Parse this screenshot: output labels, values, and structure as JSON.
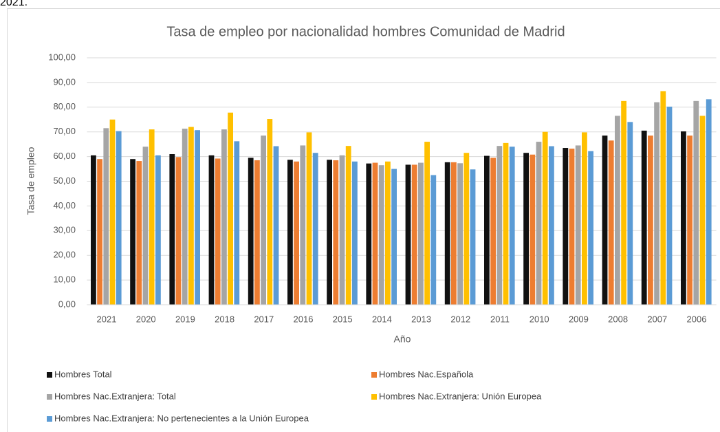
{
  "page_text": "2021.",
  "chart_data": {
    "type": "bar",
    "title": "Tasa de empleo por nacionalidad hombres Comunidad de Madrid",
    "x_label": "Año",
    "y_label": "Tasa de empleo",
    "categories": [
      "2021",
      "2020",
      "2019",
      "2018",
      "2017",
      "2016",
      "2015",
      "2014",
      "2013",
      "2012",
      "2011",
      "2010",
      "2009",
      "2008",
      "2007",
      "2006"
    ],
    "series": [
      {
        "name": "Hombres Total",
        "color": "#111111",
        "values": [
          60.5,
          59,
          61,
          60.5,
          59.5,
          58.7,
          58.7,
          57.2,
          56.7,
          57.7,
          60.3,
          61.5,
          63.5,
          68.5,
          70.5,
          70.2
        ]
      },
      {
        "name": "Hombres Nac.Española",
        "color": "#ed7d31",
        "values": [
          59,
          58.2,
          59.8,
          59.2,
          58.5,
          58,
          58.5,
          57.5,
          56.7,
          57.7,
          59.5,
          60.8,
          63.2,
          66.5,
          68.5,
          68.5
        ]
      },
      {
        "name": "Hombres Nac.Extranjera: Total",
        "color": "#a5a5a5",
        "values": [
          71.5,
          64,
          71.3,
          71,
          68.5,
          64.5,
          60.5,
          56.5,
          57.5,
          57.3,
          64.3,
          66,
          64.5,
          76.5,
          82,
          82.5
        ]
      },
      {
        "name": "Hombres Nac.Extranjera: Unión Europea",
        "color": "#ffc000",
        "values": [
          75,
          71,
          72,
          77.8,
          75.2,
          69.8,
          64.3,
          58,
          66,
          61.5,
          65.5,
          70,
          69.8,
          82.5,
          86.5,
          76.5
        ]
      },
      {
        "name": "Hombres Nac.Extranjera: No pertenecientes a la Unión Europea",
        "color": "#5b9bd5",
        "values": [
          70.3,
          60.5,
          70.7,
          66.2,
          64.2,
          61.5,
          58,
          55,
          52.5,
          54.8,
          64,
          64.2,
          62.2,
          74,
          80.2,
          83.2
        ]
      }
    ],
    "ylim": [
      0,
      100
    ],
    "yticks": [
      {
        "value": 0,
        "label": "0,00"
      },
      {
        "value": 10,
        "label": "10,00"
      },
      {
        "value": 20,
        "label": "20,00"
      },
      {
        "value": 30,
        "label": "30,00"
      },
      {
        "value": 40,
        "label": "40,00"
      },
      {
        "value": 50,
        "label": "50,00"
      },
      {
        "value": 60,
        "label": "60,00"
      },
      {
        "value": 70,
        "label": "70,00"
      },
      {
        "value": 80,
        "label": "80,00"
      },
      {
        "value": 90,
        "label": "90,00"
      },
      {
        "value": 100,
        "label": "100,00"
      }
    ],
    "grid": true,
    "legend": "bottom"
  }
}
